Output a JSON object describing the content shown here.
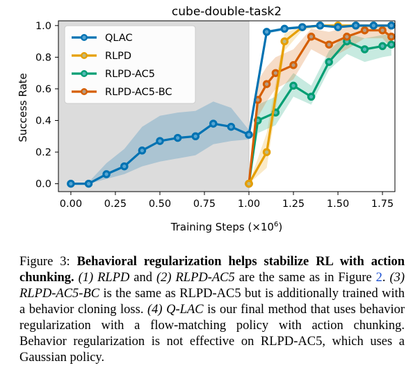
{
  "chart_data": {
    "type": "line",
    "title": "cube-double-task2",
    "xlabel": "Training Steps (×10",
    "xlabel_exp": "6",
    "xlabel_close": ")",
    "ylabel": "Success Rate",
    "xlim": [
      -0.07,
      1.82
    ],
    "ylim": [
      -0.05,
      1.03
    ],
    "xticks": [
      "0.00",
      "0.25",
      "0.50",
      "0.75",
      "1.00",
      "1.25",
      "1.50",
      "1.75"
    ],
    "yticks": [
      "0.0",
      "0.2",
      "0.4",
      "0.6",
      "0.8",
      "1.0"
    ],
    "offline_region": [
      -0.07,
      1.0
    ],
    "legend_position": "top-left",
    "series": [
      {
        "name": "QLAC",
        "color": "#0072b2",
        "x": [
          0.0,
          0.1,
          0.2,
          0.3,
          0.4,
          0.5,
          0.6,
          0.7,
          0.8,
          0.9,
          1.0,
          1.1,
          1.2,
          1.3,
          1.4,
          1.5,
          1.6,
          1.7,
          1.8
        ],
        "y": [
          0.0,
          0.0,
          0.06,
          0.11,
          0.21,
          0.27,
          0.29,
          0.3,
          0.38,
          0.36,
          0.31,
          0.96,
          0.98,
          0.99,
          1.0,
          0.99,
          1.0,
          1.0,
          1.0
        ],
        "lower": [
          0.0,
          0.0,
          0.03,
          0.06,
          0.11,
          0.14,
          0.16,
          0.18,
          0.25,
          0.27,
          0.28,
          0.95,
          0.97,
          0.99,
          0.99,
          0.99,
          0.99,
          0.99,
          0.99
        ],
        "upper": [
          0.0,
          0.01,
          0.13,
          0.22,
          0.36,
          0.43,
          0.45,
          0.46,
          0.52,
          0.48,
          0.34,
          0.97,
          0.99,
          1.0,
          1.0,
          1.0,
          1.0,
          1.0,
          1.0
        ]
      },
      {
        "name": "RLPD",
        "color": "#e69f00",
        "x": [
          1.0,
          1.1,
          1.2,
          1.3,
          1.4,
          1.5,
          1.6,
          1.7,
          1.8
        ],
        "y": [
          0.0,
          0.2,
          0.9,
          0.99,
          1.0,
          1.0,
          1.0,
          1.0,
          1.0
        ],
        "lower": [
          0.0,
          0.1,
          0.84,
          0.97,
          0.99,
          0.99,
          0.99,
          0.99,
          0.99
        ],
        "upper": [
          0.0,
          0.32,
          0.95,
          1.0,
          1.0,
          1.0,
          1.0,
          1.0,
          1.0
        ]
      },
      {
        "name": "RLPD-AC5",
        "color": "#009e73",
        "x": [
          1.0,
          1.05,
          1.15,
          1.25,
          1.35,
          1.45,
          1.55,
          1.65,
          1.75,
          1.8
        ],
        "y": [
          0.0,
          0.4,
          0.45,
          0.62,
          0.55,
          0.77,
          0.9,
          0.85,
          0.87,
          0.88
        ],
        "lower": [
          0.0,
          0.32,
          0.37,
          0.55,
          0.5,
          0.72,
          0.82,
          0.77,
          0.8,
          0.81
        ],
        "upper": [
          0.0,
          0.5,
          0.55,
          0.7,
          0.62,
          0.84,
          0.95,
          0.92,
          0.94,
          0.95
        ]
      },
      {
        "name": "RLPD-AC5-BC",
        "color": "#d55e00",
        "x": [
          1.0,
          1.05,
          1.1,
          1.15,
          1.25,
          1.35,
          1.45,
          1.55,
          1.65,
          1.75,
          1.8
        ],
        "y": [
          0.0,
          0.53,
          0.63,
          0.7,
          0.75,
          0.93,
          0.88,
          0.93,
          0.97,
          0.97,
          0.93
        ],
        "lower": [
          0.0,
          0.42,
          0.52,
          0.6,
          0.66,
          0.85,
          0.79,
          0.85,
          0.92,
          0.92,
          0.86
        ],
        "upper": [
          0.0,
          0.65,
          0.74,
          0.8,
          0.85,
          0.98,
          0.96,
          0.99,
          1.0,
          1.0,
          0.98
        ]
      }
    ]
  },
  "caption": {
    "label": "Figure 3: ",
    "bold": "Behavioral regularization helps stabilize RL with action chunking.",
    "p1": " (1) RLPD",
    "p2": " and ",
    "p3": "(2) RLPD-AC5",
    "p4": " are the same as in Figure ",
    "ref": "2",
    "p5": ". ",
    "p6": "(3) RLPD-AC5-BC",
    "p7": " is the same as RLPD-AC5 but is additionally trained with a behavior cloning loss. ",
    "p8": "(4) Q-LAC",
    "p9": " is our final method that uses behavior regularization with a flow-matching policy with action chunking. Behavior regularization is not effective on RLPD-AC5, which uses a Gaussian policy."
  }
}
